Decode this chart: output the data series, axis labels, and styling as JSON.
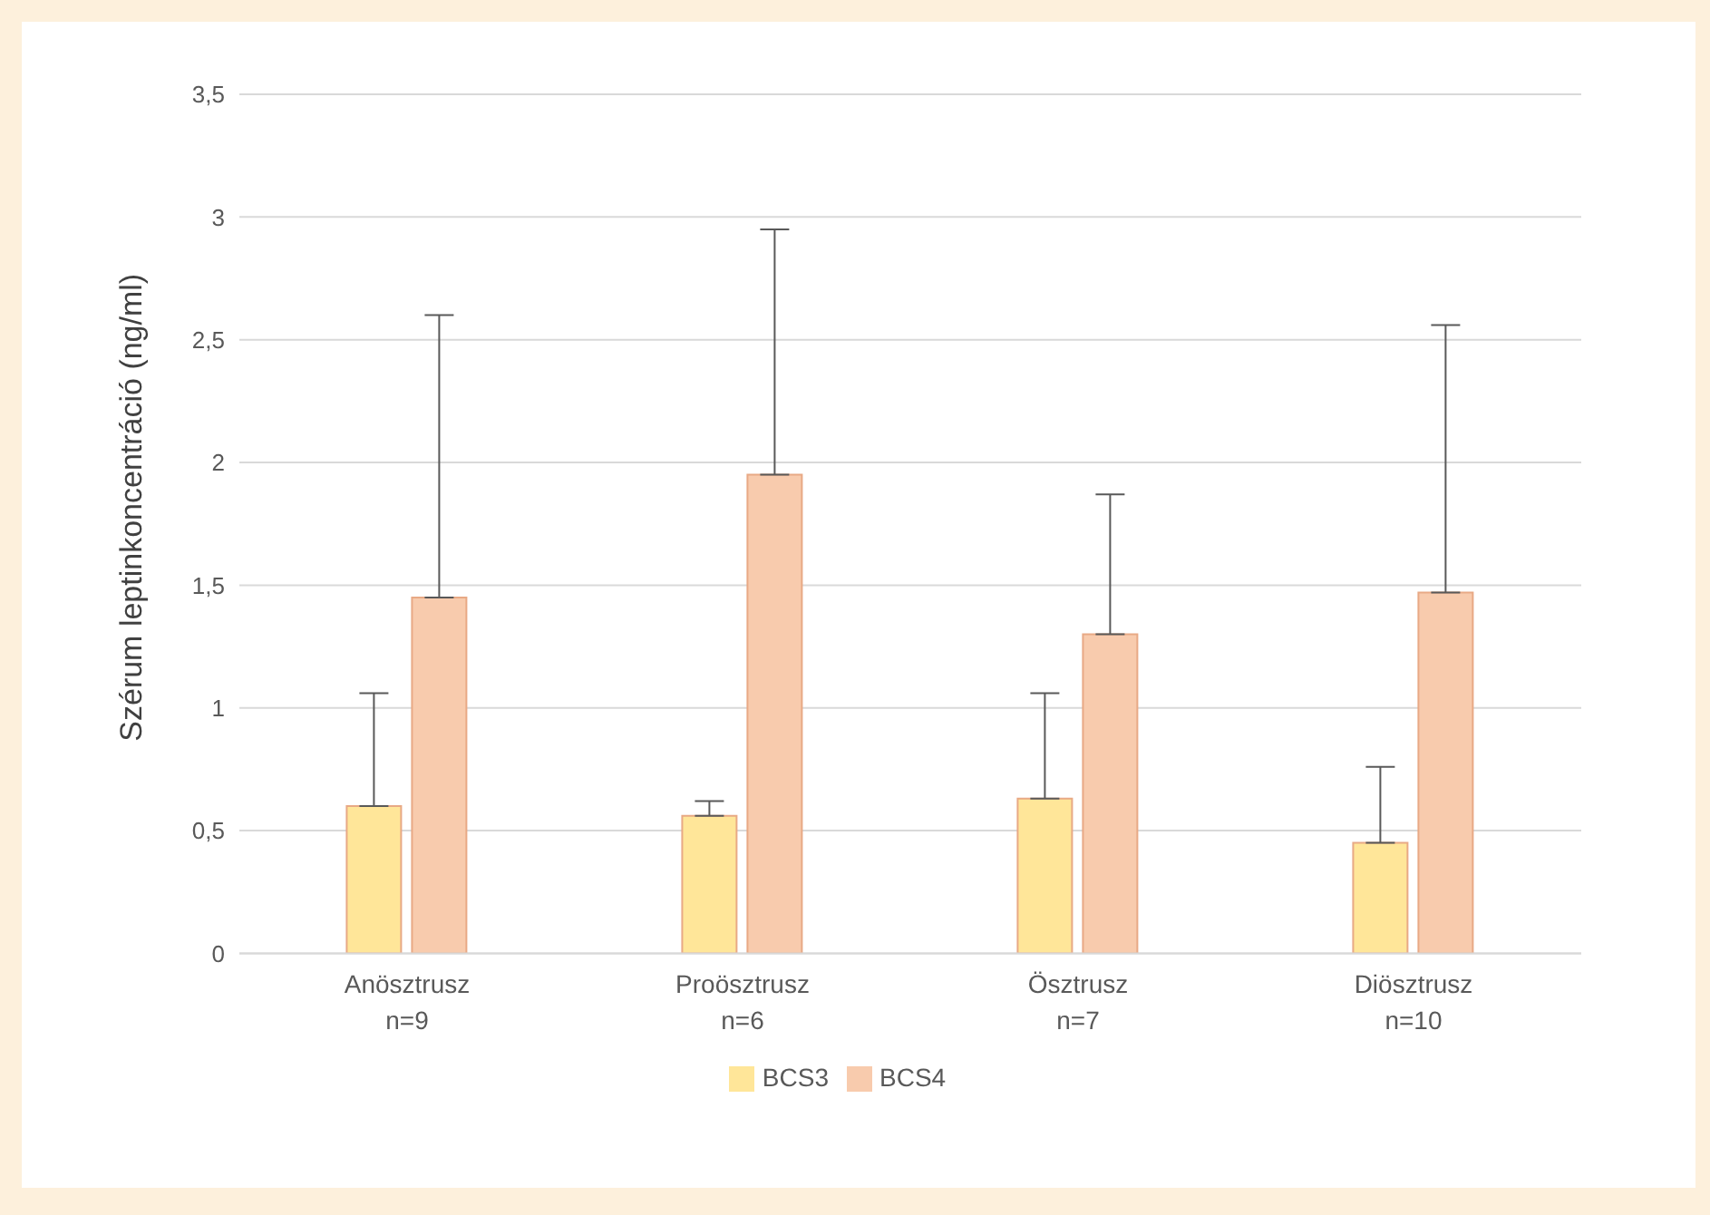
{
  "chart_data": {
    "type": "bar",
    "ylabel": "Szérum leptinkoncentráció (ng/ml)",
    "categories": [
      "Anösztrusz\nn=9",
      "Proösztrusz\nn=6",
      "Ösztrusz\nn=7",
      "Diösztrusz\nn=10"
    ],
    "series": [
      {
        "name": "BCS3",
        "color": "#ffe699",
        "values": [
          0.6,
          0.56,
          0.63,
          0.45
        ],
        "errors": [
          [
            0.6,
            1.06
          ],
          [
            0.56,
            0.62
          ],
          [
            0.63,
            1.06
          ],
          [
            0.45,
            0.76
          ]
        ]
      },
      {
        "name": "BCS4",
        "color": "#f8cbad",
        "values": [
          1.45,
          1.95,
          1.3,
          1.47
        ],
        "errors": [
          [
            1.45,
            2.6
          ],
          [
            1.95,
            2.95
          ],
          [
            1.3,
            1.87
          ],
          [
            1.47,
            2.56
          ]
        ]
      }
    ],
    "ylim": [
      0,
      3.5
    ],
    "yticks": [
      0,
      {
        "value": 0.5,
        "label": "0,5"
      },
      1,
      {
        "value": 1.5,
        "label": "1,5"
      },
      2,
      {
        "value": 2.5,
        "label": "2,5"
      },
      3,
      {
        "value": 3.5,
        "label": "3,5"
      }
    ],
    "grid": "y",
    "legend": "bottom"
  }
}
